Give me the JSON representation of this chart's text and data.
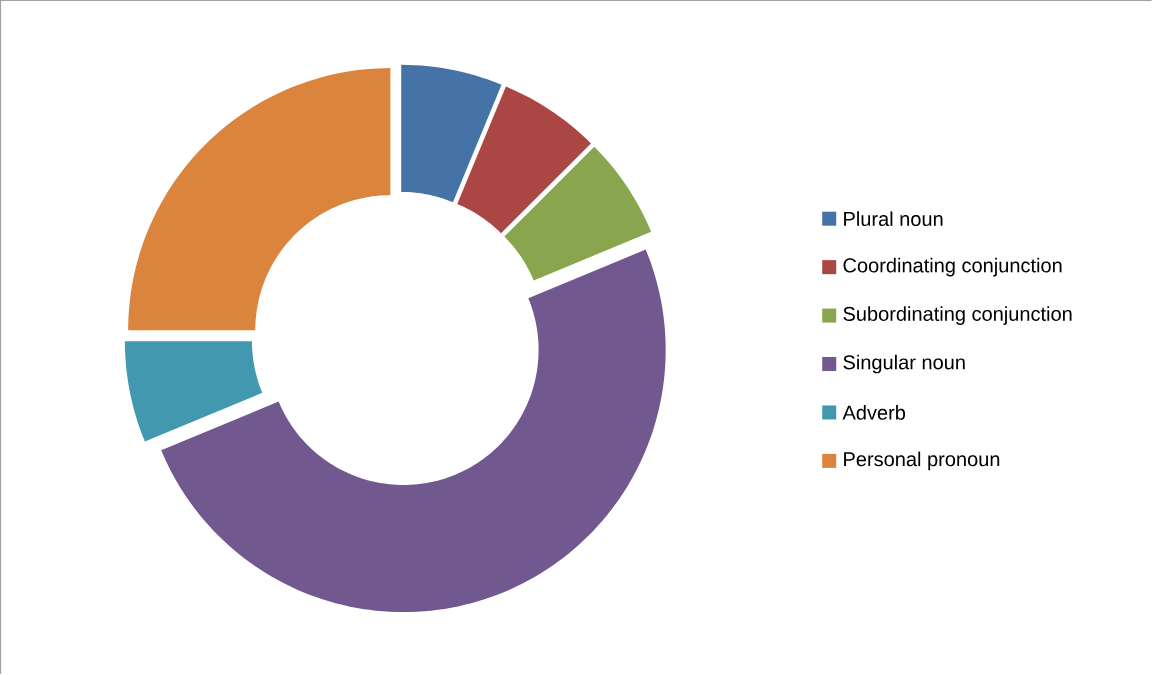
{
  "chart_data": {
    "type": "donut",
    "categories": [
      "Plural noun",
      "Coordinating conjunction",
      "Subordinating conjunction",
      "Singular noun",
      "Adverb",
      "Personal pronoun"
    ],
    "values": [
      6.25,
      6.25,
      6.25,
      50,
      6.25,
      25
    ],
    "colors": [
      "#4572a7",
      "#aa4643",
      "#89a54e",
      "#71588f",
      "#4198af",
      "#db843d"
    ],
    "legend": "right"
  }
}
